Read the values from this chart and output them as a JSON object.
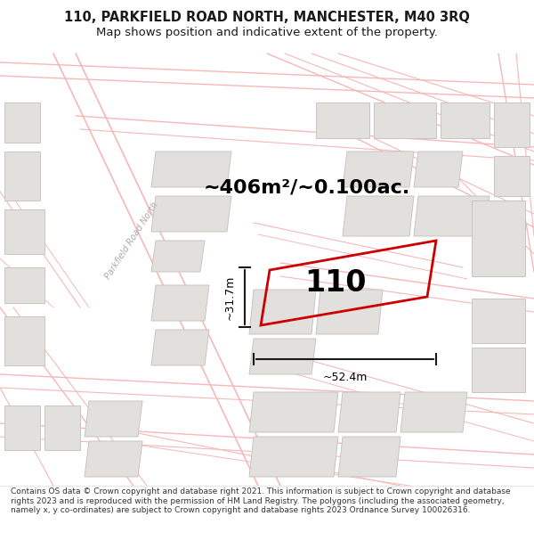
{
  "title_line1": "110, PARKFIELD ROAD NORTH, MANCHESTER, M40 3RQ",
  "title_line2": "Map shows position and indicative extent of the property.",
  "area_label": "~406m²/~0.100ac.",
  "number_label": "110",
  "dim_vertical": "~31.7m",
  "dim_horizontal": "~52.4m",
  "street_label": "Parkfield Road North",
  "footer_text": "Contains OS data © Crown copyright and database right 2021. This information is subject to Crown copyright and database rights 2023 and is reproduced with the permission of HM Land Registry. The polygons (including the associated geometry, namely x, y co-ordinates) are subject to Crown copyright and database rights 2023 Ordnance Survey 100026316.",
  "bg_color": "#ffffff",
  "map_bg": "#f8f7f5",
  "building_fill": "#e2e0dc",
  "building_edge": "#c8c5c0",
  "road_fill": "#ffffff",
  "street_line_color": "#f5b8b8",
  "street_line_color2": "#f0c0c0",
  "property_color": "#cc0000",
  "arrow_color": "#1a1a1a",
  "title_color": "#1a1a1a",
  "footer_color": "#333333",
  "title_fontsize": 10.5,
  "subtitle_fontsize": 9.5,
  "area_fontsize": 16,
  "number_fontsize": 24,
  "dim_fontsize": 9,
  "footer_fontsize": 6.5,
  "street_label_color": "#aaaaaa"
}
